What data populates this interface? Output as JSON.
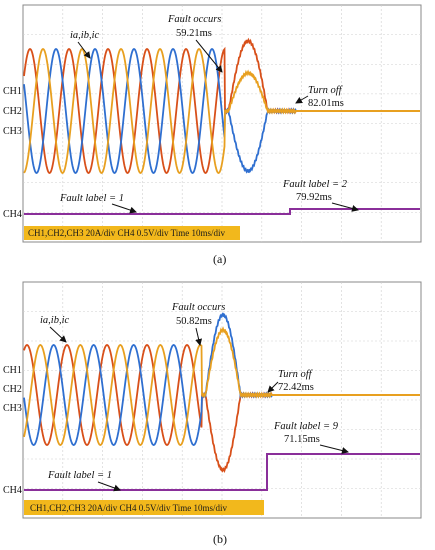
{
  "colors": {
    "ia": "#e8a020",
    "ib": "#2f6fd0",
    "ic": "#d8501a",
    "ch4": "#8a2f9a",
    "infobox": "#f2b81c",
    "grid": "#cfcfcf"
  },
  "chart_data": [
    {
      "type": "line",
      "panel_label": "(a)",
      "time_per_div_ms": 10,
      "channels": [
        "CH1",
        "CH2",
        "CH3",
        "CH4"
      ],
      "info_text": "CH1,CH2,CH3 20A/div CH4 0.5V/div Time 10ms/div",
      "series_label": "ia,ib,ic",
      "grid": true,
      "events": {
        "fault_occurs": {
          "label": "Fault occurs",
          "time": "59.21ms",
          "time_ms": 59.21
        },
        "turn_off": {
          "label": "Turn off",
          "time": "82.01ms",
          "time_ms": 82.01
        },
        "fault_label_before": {
          "label": "Fault label = 1",
          "value": 1
        },
        "fault_label_after": {
          "label": "Fault label = 2",
          "value": 2,
          "time": "79.92ms",
          "time_ms": 79.92
        }
      },
      "fault_label_step_time_ms": 79.92
    },
    {
      "type": "line",
      "panel_label": "(b)",
      "time_per_div_ms": 10,
      "channels": [
        "CH1",
        "CH2",
        "CH3",
        "CH4"
      ],
      "info_text": "CH1,CH2,CH3 20A/div CH4 0.5V/div Time 10ms/div",
      "series_label": "ia,ib,ic",
      "grid": true,
      "events": {
        "fault_occurs": {
          "label": "Fault occurs",
          "time": "50.82ms",
          "time_ms": 50.82
        },
        "turn_off": {
          "label": "Turn off",
          "time": "72.42ms",
          "time_ms": 72.42
        },
        "fault_label_before": {
          "label": "Fault label = 1",
          "value": 1
        },
        "fault_label_after": {
          "label": "Fault label = 9",
          "value": 9,
          "time": "71.15ms",
          "time_ms": 71.15
        }
      },
      "fault_label_step_time_ms": 71.15
    }
  ]
}
